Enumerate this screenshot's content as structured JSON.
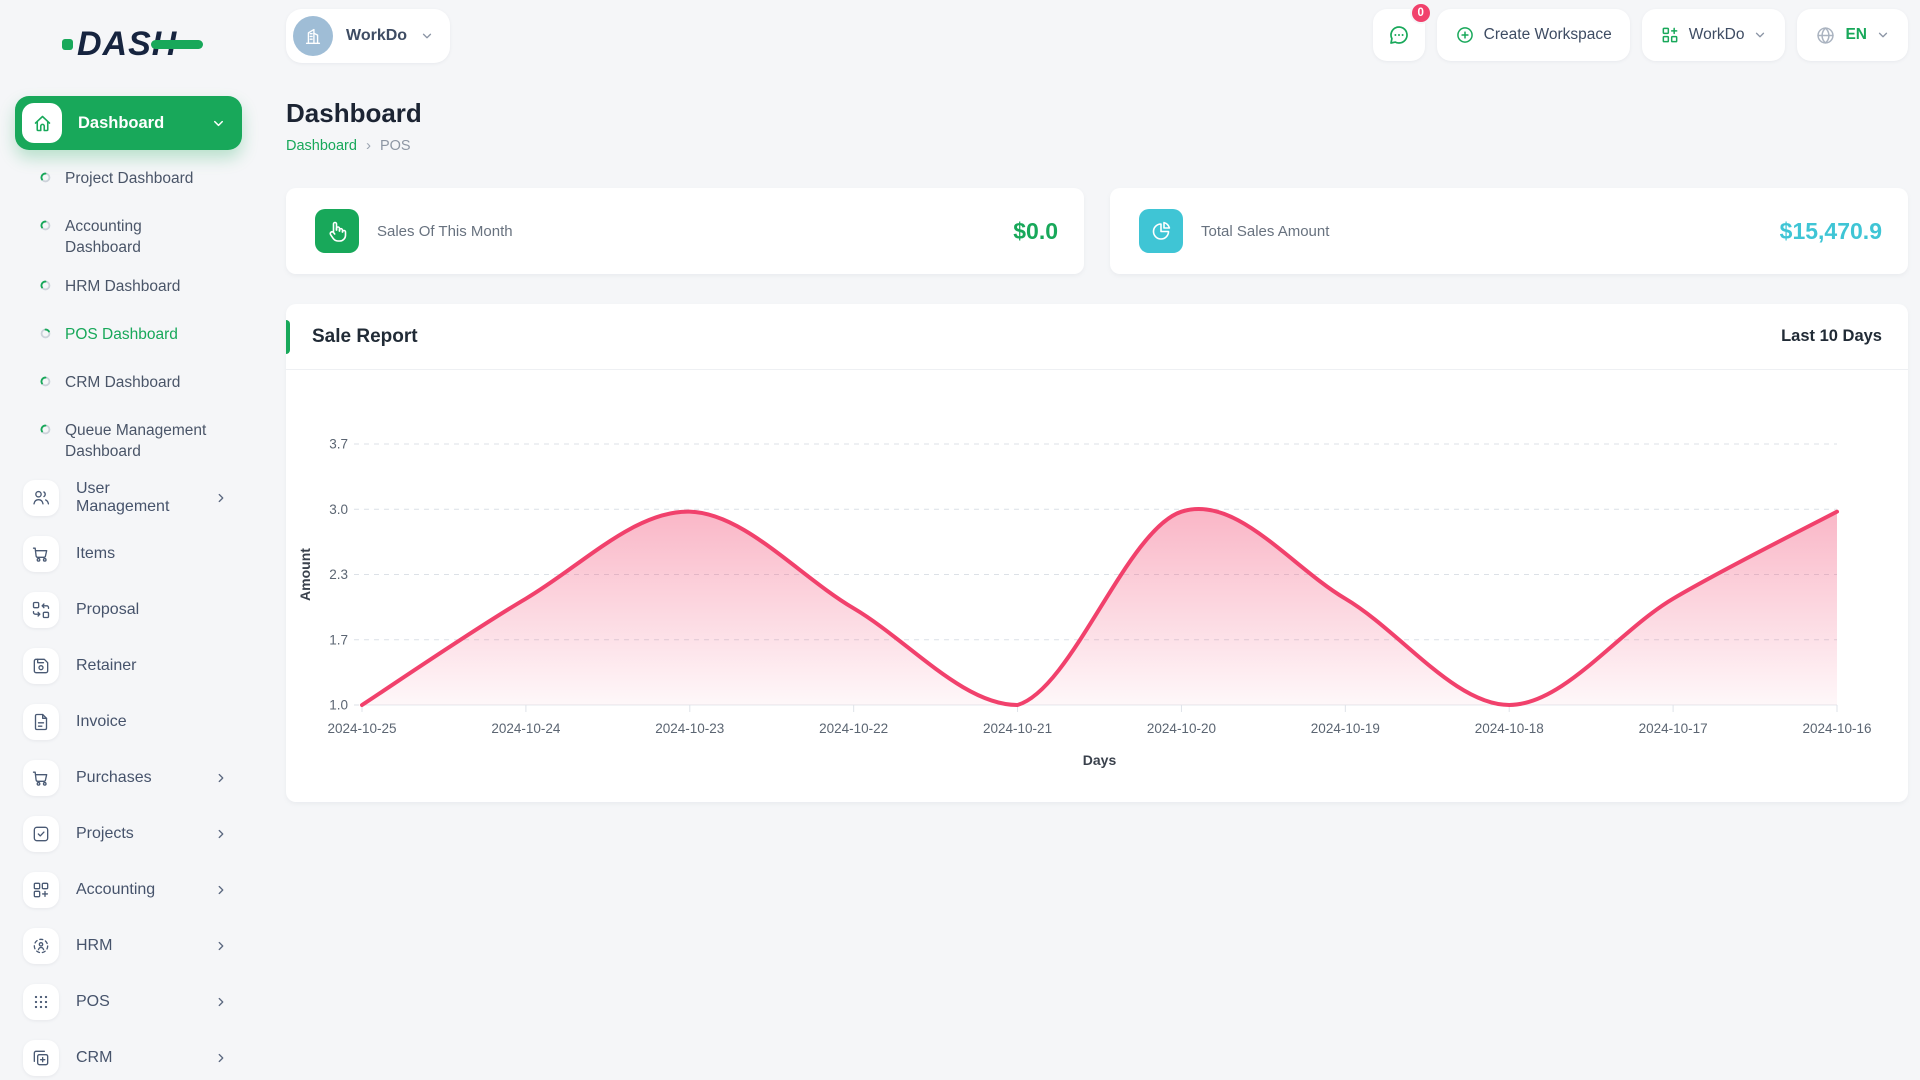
{
  "colors": {
    "green": "#18a85a",
    "cyan": "#3fc5d5",
    "pink": "#f1416c"
  },
  "logo": {
    "text": "DASH"
  },
  "topbar": {
    "workspace_switcher": {
      "label": "WorkDo"
    },
    "chat_badge_count": "0",
    "create_workspace": {
      "label": "Create Workspace"
    },
    "workspace_menu": {
      "label": "WorkDo"
    },
    "language_menu": {
      "label": "EN"
    }
  },
  "sidebar": {
    "group": {
      "label": "Dashboard"
    },
    "children": [
      {
        "label": "Project Dashboard"
      },
      {
        "label": "Accounting Dashboard"
      },
      {
        "label": "HRM Dashboard"
      },
      {
        "label": "POS Dashboard"
      },
      {
        "label": "CRM Dashboard"
      },
      {
        "label": "Queue Management Dashboard"
      }
    ],
    "items": [
      {
        "label": "User Management"
      },
      {
        "label": "Items"
      },
      {
        "label": "Proposal"
      },
      {
        "label": "Retainer"
      },
      {
        "label": "Invoice"
      },
      {
        "label": "Purchases"
      },
      {
        "label": "Projects"
      },
      {
        "label": "Accounting"
      },
      {
        "label": "HRM"
      },
      {
        "label": "POS"
      },
      {
        "label": "CRM"
      }
    ]
  },
  "page": {
    "title": "Dashboard",
    "breadcrumb_root": "Dashboard",
    "breadcrumb_current": "POS"
  },
  "stats": {
    "sales_month": {
      "label": "Sales Of This Month",
      "value": "$0.0"
    },
    "total_sales": {
      "label": "Total Sales Amount",
      "value": "$15,470.9"
    }
  },
  "report": {
    "title": "Sale Report",
    "range": "Last 10 Days"
  },
  "chart_data": {
    "type": "area",
    "title": "Sale Report",
    "x": [
      "2024-10-25",
      "2024-10-24",
      "2024-10-23",
      "2024-10-22",
      "2024-10-21",
      "2024-10-20",
      "2024-10-19",
      "2024-10-18",
      "2024-10-17",
      "2024-10-16"
    ],
    "series": [
      {
        "name": "Amount",
        "values": [
          1.0,
          2.1,
          3.0,
          2.0,
          1.0,
          3.0,
          2.1,
          1.0,
          2.1,
          3.0
        ]
      }
    ],
    "xlabel": "Days",
    "ylabel": "Amount",
    "ylim": [
      1.0,
      3.7
    ],
    "yticks": [
      "1.0",
      "1.7",
      "2.3",
      "3.0",
      "3.7"
    ],
    "line_color": "#f1416c",
    "fill": "vertical-gradient",
    "grid": "dashed-horizontal",
    "legend": "none"
  }
}
